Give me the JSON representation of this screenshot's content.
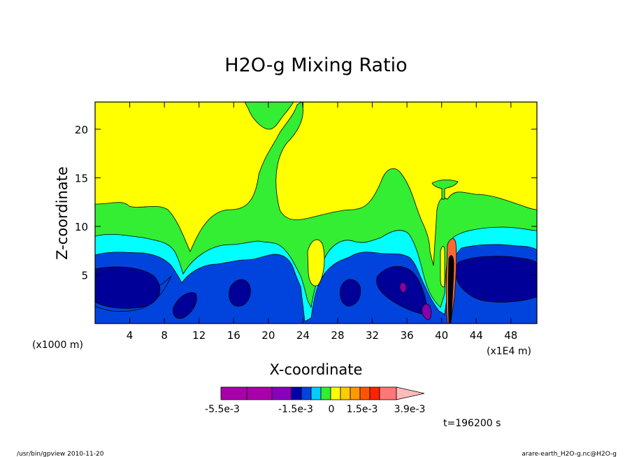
{
  "chart_data": {
    "type": "heatmap",
    "title": "H2O-g Mixing Ratio",
    "xlabel": "X-coordinate",
    "ylabel": "Z-coordinate",
    "x_unit_note": "(x1000 m)",
    "x_scale_note": "(x1E4 m)",
    "x_ticks": [
      "4",
      "8",
      "12",
      "16",
      "20",
      "24",
      "28",
      "32",
      "36",
      "40",
      "44",
      "48"
    ],
    "y_ticks": [
      "5",
      "10",
      "15",
      "20"
    ],
    "xlim": [
      0,
      51
    ],
    "ylim": [
      0,
      22.8
    ],
    "time_label": "t=196200 s",
    "colorbar": {
      "colors": [
        "#aa00aa",
        "#aa00aa",
        "#8800bb",
        "#0000aa",
        "#0044dd",
        "#00ccff",
        "#33ee33",
        "#ffff00",
        "#ffcc00",
        "#ff9900",
        "#ff5500",
        "#ff2200",
        "#ff7777",
        "#ffbbbb"
      ],
      "labels": [
        "-5.5e-3",
        "-1.5e-3",
        "0",
        "1.5e-3",
        "3.9e-3"
      ]
    },
    "palette": {
      "background": "#ffff00",
      "level1": "#33ee33",
      "level2": "#00ffff",
      "level3": "#0044dd",
      "level4": "#000099",
      "low": "#8800aa",
      "high": "#ff6633"
    }
  },
  "footer": {
    "left": "/usr/bin/gpview   2010-11-20",
    "right": "arare-earth_H2O-g.nc@H2O-g"
  }
}
